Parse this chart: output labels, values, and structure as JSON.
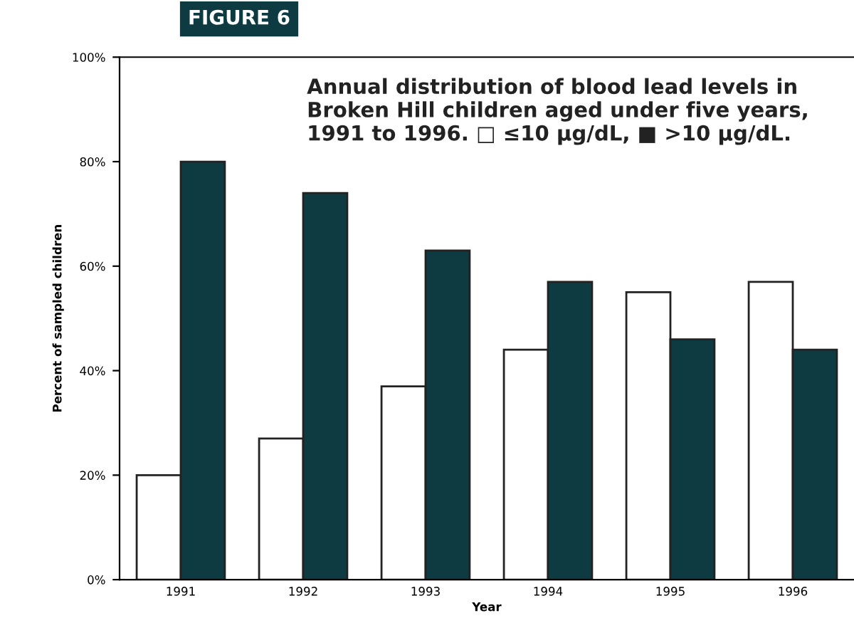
{
  "chart_data": {
    "type": "bar",
    "title": "Annual distribution of blood lead levels in Broken Hill children aged under five years, 1991 to 1996. □ ≤10 μg/dL, ■ >10 μg/dL.",
    "annotations": [
      "FIGURE 6"
    ],
    "xlabel": "Year",
    "ylabel": "Percent of sampled children",
    "categories": [
      "1991",
      "1992",
      "1993",
      "1994",
      "1995",
      "1996"
    ],
    "series": [
      {
        "color": "#ffffff",
        "values": [
          20,
          27,
          37,
          44,
          55,
          57
        ]
      },
      {
        "color": "#0e3b42",
        "values": [
          80,
          74,
          63,
          57,
          46,
          44
        ]
      }
    ],
    "ylim": [
      0,
      100
    ],
    "yticks": [
      {
        "value": 0,
        "label": "0%"
      },
      {
        "value": 20,
        "label": "20%"
      },
      {
        "value": 40,
        "label": "40%"
      },
      {
        "value": 60,
        "label": "60%"
      },
      {
        "value": 80,
        "label": "80%"
      },
      {
        "value": 100,
        "label": "100%"
      }
    ],
    "grid": false,
    "legend": false
  }
}
